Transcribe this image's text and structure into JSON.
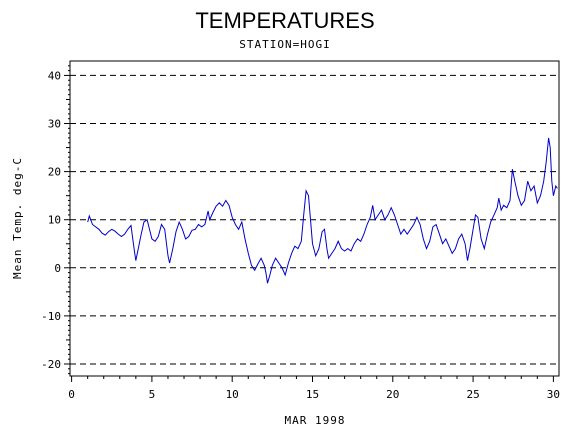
{
  "chart_data": {
    "type": "line",
    "title": "TEMPERATURES",
    "subtitle": "STATION=HOGI",
    "xlabel": "MAR 1998",
    "ylabel": "Mean Temp. deg-C",
    "xlim": [
      0,
      30
    ],
    "ylim": [
      -20,
      40
    ],
    "x_ticks": [
      "0",
      "5",
      "10",
      "15",
      "20",
      "25",
      "30"
    ],
    "y_ticks": [
      "-20",
      "-10",
      "0",
      "10",
      "20",
      "30",
      "40"
    ],
    "grid": "dashed horizontal at major y ticks",
    "line_color": "#0000cc",
    "series": [
      {
        "values": [
          [
            1.0,
            9.5
          ],
          [
            1.1,
            10.8
          ],
          [
            1.3,
            9.0
          ],
          [
            1.5,
            8.5
          ],
          [
            1.7,
            8.0
          ],
          [
            1.9,
            7.2
          ],
          [
            2.1,
            6.8
          ],
          [
            2.3,
            7.5
          ],
          [
            2.5,
            8.0
          ],
          [
            2.7,
            7.6
          ],
          [
            2.9,
            7.0
          ],
          [
            3.1,
            6.5
          ],
          [
            3.3,
            7.0
          ],
          [
            3.5,
            8.0
          ],
          [
            3.7,
            8.8
          ],
          [
            3.85,
            5.0
          ],
          [
            4.0,
            1.5
          ],
          [
            4.15,
            4.0
          ],
          [
            4.3,
            6.5
          ],
          [
            4.5,
            9.5
          ],
          [
            4.7,
            10.0
          ],
          [
            4.85,
            8.0
          ],
          [
            5.0,
            6.0
          ],
          [
            5.2,
            5.5
          ],
          [
            5.4,
            6.5
          ],
          [
            5.6,
            9.0
          ],
          [
            5.8,
            8.0
          ],
          [
            6.0,
            2.5
          ],
          [
            6.1,
            1.0
          ],
          [
            6.3,
            4.0
          ],
          [
            6.5,
            7.5
          ],
          [
            6.7,
            9.5
          ],
          [
            6.9,
            8.0
          ],
          [
            7.1,
            6.0
          ],
          [
            7.3,
            6.5
          ],
          [
            7.5,
            7.8
          ],
          [
            7.7,
            8.0
          ],
          [
            7.9,
            9.0
          ],
          [
            8.1,
            8.5
          ],
          [
            8.3,
            9.0
          ],
          [
            8.5,
            11.8
          ],
          [
            8.6,
            10.0
          ],
          [
            8.8,
            11.5
          ],
          [
            9.0,
            12.8
          ],
          [
            9.2,
            13.5
          ],
          [
            9.4,
            12.8
          ],
          [
            9.6,
            14.0
          ],
          [
            9.8,
            13.0
          ],
          [
            10.0,
            10.5
          ],
          [
            10.2,
            9.0
          ],
          [
            10.4,
            8.0
          ],
          [
            10.6,
            9.5
          ],
          [
            10.8,
            6.0
          ],
          [
            11.0,
            3.0
          ],
          [
            11.2,
            0.5
          ],
          [
            11.4,
            -0.5
          ],
          [
            11.6,
            0.8
          ],
          [
            11.8,
            2.0
          ],
          [
            12.0,
            0.5
          ],
          [
            12.1,
            -1.0
          ],
          [
            12.2,
            -3.2
          ],
          [
            12.35,
            -1.5
          ],
          [
            12.5,
            0.5
          ],
          [
            12.7,
            2.0
          ],
          [
            12.9,
            1.0
          ],
          [
            13.1,
            0.0
          ],
          [
            13.3,
            -1.5
          ],
          [
            13.5,
            1.0
          ],
          [
            13.7,
            3.0
          ],
          [
            13.9,
            4.5
          ],
          [
            14.1,
            4.0
          ],
          [
            14.3,
            5.5
          ],
          [
            14.45,
            11.0
          ],
          [
            14.6,
            16.0
          ],
          [
            14.75,
            15.0
          ],
          [
            14.9,
            9.0
          ],
          [
            15.0,
            5.0
          ],
          [
            15.2,
            2.5
          ],
          [
            15.4,
            4.0
          ],
          [
            15.6,
            7.5
          ],
          [
            15.75,
            8.0
          ],
          [
            15.9,
            4.0
          ],
          [
            16.0,
            2.0
          ],
          [
            16.2,
            3.0
          ],
          [
            16.4,
            4.0
          ],
          [
            16.6,
            5.5
          ],
          [
            16.8,
            4.0
          ],
          [
            17.0,
            3.5
          ],
          [
            17.2,
            4.0
          ],
          [
            17.4,
            3.5
          ],
          [
            17.6,
            5.0
          ],
          [
            17.8,
            6.0
          ],
          [
            18.0,
            5.5
          ],
          [
            18.2,
            7.0
          ],
          [
            18.4,
            9.0
          ],
          [
            18.6,
            10.5
          ],
          [
            18.75,
            13.0
          ],
          [
            18.9,
            10.0
          ],
          [
            19.1,
            11.0
          ],
          [
            19.3,
            12.0
          ],
          [
            19.5,
            10.0
          ],
          [
            19.7,
            11.0
          ],
          [
            19.9,
            12.5
          ],
          [
            20.1,
            11.0
          ],
          [
            20.3,
            9.0
          ],
          [
            20.5,
            7.0
          ],
          [
            20.7,
            8.0
          ],
          [
            20.9,
            7.0
          ],
          [
            21.1,
            8.0
          ],
          [
            21.3,
            9.0
          ],
          [
            21.5,
            10.5
          ],
          [
            21.7,
            9.0
          ],
          [
            21.9,
            6.0
          ],
          [
            22.1,
            4.0
          ],
          [
            22.3,
            5.5
          ],
          [
            22.5,
            8.5
          ],
          [
            22.7,
            9.0
          ],
          [
            22.9,
            7.0
          ],
          [
            23.1,
            5.0
          ],
          [
            23.3,
            6.0
          ],
          [
            23.5,
            4.5
          ],
          [
            23.7,
            3.0
          ],
          [
            23.9,
            4.0
          ],
          [
            24.1,
            6.0
          ],
          [
            24.3,
            7.0
          ],
          [
            24.5,
            5.0
          ],
          [
            24.65,
            1.5
          ],
          [
            24.8,
            4.0
          ],
          [
            25.0,
            8.0
          ],
          [
            25.15,
            11.0
          ],
          [
            25.3,
            10.5
          ],
          [
            25.5,
            6.0
          ],
          [
            25.7,
            4.0
          ],
          [
            25.9,
            7.0
          ],
          [
            26.1,
            9.5
          ],
          [
            26.3,
            11.0
          ],
          [
            26.5,
            12.5
          ],
          [
            26.6,
            14.5
          ],
          [
            26.75,
            12.0
          ],
          [
            26.9,
            13.0
          ],
          [
            27.1,
            12.5
          ],
          [
            27.3,
            14.0
          ],
          [
            27.45,
            20.5
          ],
          [
            27.6,
            18.0
          ],
          [
            27.8,
            15.0
          ],
          [
            28.0,
            13.0
          ],
          [
            28.2,
            14.0
          ],
          [
            28.4,
            18.0
          ],
          [
            28.6,
            16.0
          ],
          [
            28.8,
            17.0
          ],
          [
            29.0,
            13.5
          ],
          [
            29.2,
            15.0
          ],
          [
            29.4,
            18.0
          ],
          [
            29.55,
            22.0
          ],
          [
            29.7,
            27.0
          ],
          [
            29.8,
            25.0
          ],
          [
            29.9,
            18.0
          ],
          [
            30.0,
            15.0
          ],
          [
            30.15,
            17.0
          ],
          [
            30.25,
            16.5
          ]
        ]
      }
    ]
  }
}
